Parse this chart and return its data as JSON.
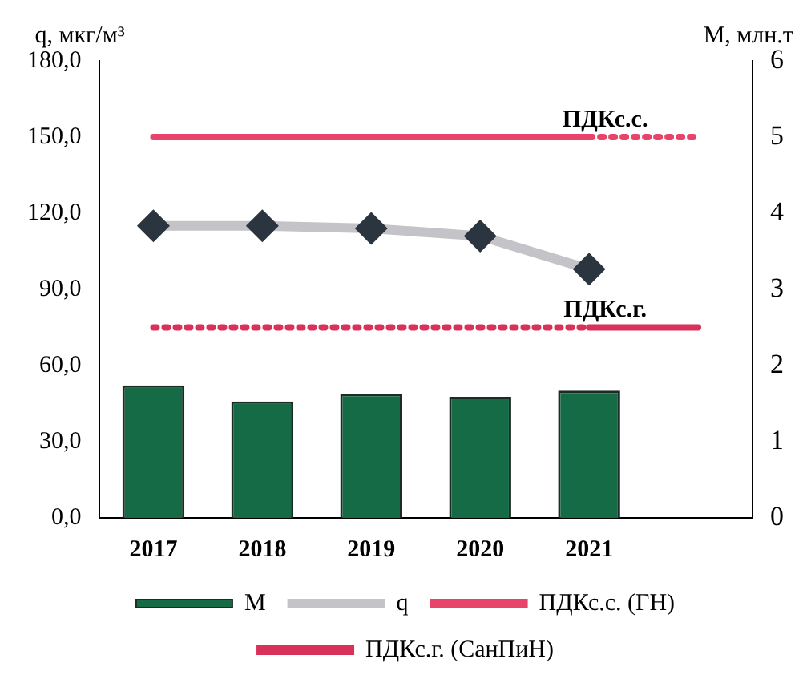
{
  "chart_data": {
    "type": "bar",
    "ylabel": "q, мкг/м³",
    "y2label": "M, млн.т",
    "categories": [
      "2017",
      "2018",
      "2019",
      "2020",
      "2021",
      null
    ],
    "series": [
      {
        "name": "M",
        "axis": "y2",
        "color": "#146b45",
        "values": [
          1.74,
          1.53,
          1.63,
          1.59,
          1.67,
          null
        ]
      },
      {
        "name": "q",
        "type": "line",
        "color": "#c4c4c8",
        "marker": "diamond",
        "values": [
          115,
          115,
          114,
          111,
          98,
          null
        ]
      },
      {
        "name": "ПДКс.с. (ГН)",
        "type": "line",
        "color": "#e8436a",
        "marker": "none",
        "line_style": "solid",
        "values": [
          150,
          150,
          150,
          150,
          150,
          null
        ]
      },
      {
        "type": "line",
        "color": "#e8436a",
        "marker": "none",
        "line_style": "dotted",
        "values": [
          null,
          null,
          null,
          null,
          150,
          150
        ]
      },
      {
        "name": "ПДКс.г. (СанПиН)",
        "type": "line",
        "color": "#d9325a",
        "marker": "none",
        "line_style": "solid",
        "values": [
          null,
          null,
          null,
          null,
          75,
          75
        ]
      },
      {
        "type": "line",
        "color": "#d9325a",
        "marker": "none",
        "line_style": "dotted",
        "values": [
          75,
          75,
          75,
          75,
          75,
          null
        ]
      }
    ],
    "annotations": [
      {
        "text": "ПДКс.с.",
        "x": "2021",
        "y": 150
      },
      {
        "text": "ПДКс.г.",
        "x": "2021",
        "y": 75
      }
    ],
    "ylim": [
      0,
      180
    ],
    "yticks": [
      {
        "value": 0,
        "label": "0,0"
      },
      {
        "value": 30,
        "label": "30,0"
      },
      {
        "value": 60,
        "label": "60,0"
      },
      {
        "value": 90,
        "label": "90,0"
      },
      {
        "value": 120,
        "label": "120,0"
      },
      {
        "value": 150,
        "label": "150,0"
      },
      {
        "value": 180,
        "label": "180,0"
      }
    ],
    "y2lim": [
      0,
      6
    ],
    "y2ticks": [
      0,
      1,
      2,
      3,
      4,
      5,
      6
    ],
    "grid": false,
    "legend": "bottom"
  }
}
